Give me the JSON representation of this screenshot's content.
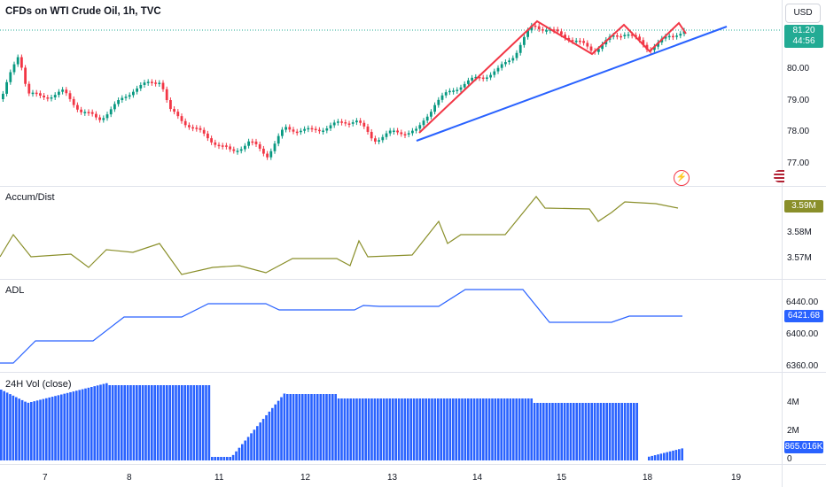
{
  "header": {
    "title": "CFDs on WTI Crude Oil, 1h, TVC",
    "currency_button": "USD"
  },
  "price_panel": {
    "last_price": "81.20",
    "countdown": "44:56",
    "y_ticks": [
      "80.00",
      "79.00",
      "78.00",
      "77.00"
    ],
    "price_tag_color": "#22ab94"
  },
  "accum_panel": {
    "label": "Accum/Dist",
    "value_tag": "3.59M",
    "y_ticks": [
      "3.58M",
      "3.57M"
    ],
    "line_color": "#8a8f2a"
  },
  "adl_panel": {
    "label": "ADL",
    "value_tag": "6421.68",
    "y_ticks": [
      "6440.00",
      "6400.00",
      "6360.00"
    ],
    "line_color": "#2962ff"
  },
  "vol_panel": {
    "label": "24H Vol (close)",
    "value_tag": "865.016K",
    "y_ticks": [
      "4M",
      "2M",
      "0"
    ],
    "bar_color": "#2962ff"
  },
  "x_axis": {
    "ticks": [
      "7",
      "8",
      "11",
      "12",
      "13",
      "14",
      "15",
      "18",
      "19"
    ]
  },
  "icons": {
    "tradingview_logo": "tradingview-logo-icon",
    "us_flag": "us-flag-icon"
  },
  "colors": {
    "up": "#089981",
    "down": "#f23645",
    "trendline": "#2962ff",
    "pattern": "#f23645"
  }
}
